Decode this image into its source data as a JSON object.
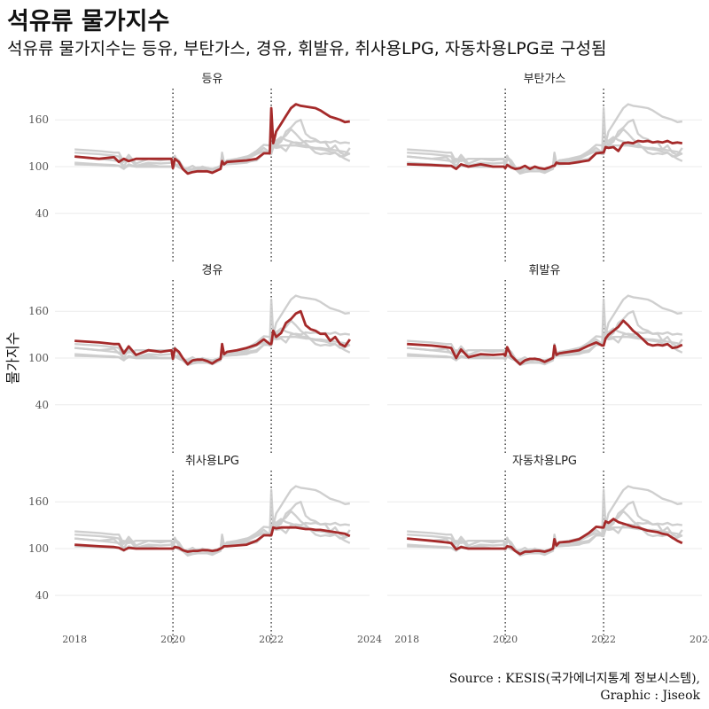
{
  "title": "석유류 물가지수",
  "subtitle": "석유류 물가지수는 등유, 부탄가스, 경유, 휘발유, 취사용LPG, 자동차용LPG로 구성됨",
  "caption": {
    "line1": "Source : KESIS(국가에너지통계 정보시스템),",
    "line2": "Graphic : Jiseok"
  },
  "colors": {
    "highlight": "#a52a2a",
    "background_series": "#cccccc",
    "grid": "#ebebeb",
    "vline": "#222222"
  },
  "chart_data": {
    "type": "line",
    "layout": "facet-grid",
    "ylabel": "물가지수",
    "xlabel": "",
    "ylim": [
      0,
      200
    ],
    "yticks": [
      40,
      100,
      160
    ],
    "xlim": [
      2017.6,
      2024
    ],
    "xticks": [
      2018,
      2020,
      2022,
      2024
    ],
    "vlines": [
      2020,
      2022
    ],
    "x": [
      2018.0,
      2018.5,
      2018.8,
      2018.9,
      2019.0,
      2019.1,
      2019.25,
      2019.5,
      2019.75,
      2019.97,
      2020.0,
      2020.04,
      2020.12,
      2020.2,
      2020.3,
      2020.4,
      2020.5,
      2020.6,
      2020.7,
      2020.8,
      2020.9,
      2020.97,
      2021.0,
      2021.04,
      2021.1,
      2021.3,
      2021.5,
      2021.7,
      2021.85,
      2021.97,
      2022.0,
      2022.04,
      2022.1,
      2022.2,
      2022.3,
      2022.4,
      2022.5,
      2022.6,
      2022.7,
      2022.8,
      2022.9,
      2023.0,
      2023.1,
      2023.2,
      2023.3,
      2023.4,
      2023.5,
      2023.6
    ],
    "series": [
      {
        "name": "등유",
        "values": [
          113,
          110,
          112,
          106,
          110,
          107,
          110,
          110,
          110,
          110,
          98,
          110,
          106,
          97,
          91,
          93,
          94,
          94,
          94,
          92,
          95,
          97,
          107,
          103,
          106,
          107,
          108,
          110,
          117,
          117,
          175,
          130,
          145,
          155,
          165,
          175,
          180,
          178,
          177,
          176,
          175,
          172,
          168,
          164,
          162,
          160,
          157,
          158
        ]
      },
      {
        "name": "부탄가스",
        "values": [
          103,
          102,
          101,
          101,
          97,
          103,
          100,
          103,
          100,
          100,
          98,
          102,
          99,
          97,
          98,
          101,
          97,
          100,
          98,
          97,
          99,
          101,
          101,
          105,
          104,
          104,
          106,
          108,
          117,
          118,
          118,
          125,
          124,
          125,
          120,
          130,
          131,
          130,
          133,
          132,
          133,
          131,
          132,
          131,
          133,
          130,
          131,
          130
        ]
      },
      {
        "name": "경유",
        "values": [
          122,
          120,
          118,
          118,
          106,
          115,
          104,
          110,
          108,
          110,
          99,
          112,
          108,
          100,
          92,
          97,
          98,
          98,
          96,
          93,
          97,
          99,
          118,
          105,
          108,
          110,
          113,
          117,
          124,
          118,
          118,
          135,
          127,
          132,
          145,
          150,
          157,
          160,
          142,
          137,
          135,
          131,
          131,
          122,
          127,
          118,
          115,
          124
        ]
      },
      {
        "name": "휘발유",
        "values": [
          118,
          116,
          114,
          113,
          100,
          111,
          101,
          105,
          104,
          105,
          103,
          114,
          103,
          98,
          92,
          97,
          99,
          99,
          98,
          95,
          98,
          100,
          116,
          104,
          106,
          108,
          110,
          116,
          120,
          116,
          116,
          125,
          130,
          135,
          140,
          148,
          142,
          135,
          130,
          124,
          118,
          116,
          117,
          116,
          118,
          113,
          114,
          117
        ]
      },
      {
        "name": "취사용LPG",
        "values": [
          105,
          103,
          102,
          101,
          98,
          101,
          100,
          100,
          100,
          100,
          100,
          102,
          101,
          98,
          96,
          97,
          97,
          98,
          98,
          97,
          98,
          100,
          101,
          103,
          103,
          104,
          105,
          110,
          117,
          117,
          117,
          127,
          126,
          127,
          127,
          127,
          127,
          126,
          125,
          125,
          124,
          124,
          123,
          122,
          121,
          120,
          119,
          116
        ]
      },
      {
        "name": "자동차용LPG",
        "values": [
          113,
          110,
          108,
          107,
          99,
          102,
          100,
          100,
          100,
          100,
          100,
          103,
          102,
          97,
          93,
          96,
          96,
          97,
          97,
          96,
          98,
          100,
          112,
          104,
          108,
          109,
          112,
          120,
          128,
          127,
          127,
          135,
          133,
          138,
          134,
          132,
          130,
          128,
          127,
          125,
          123,
          122,
          121,
          119,
          118,
          114,
          110,
          107
        ]
      }
    ]
  }
}
